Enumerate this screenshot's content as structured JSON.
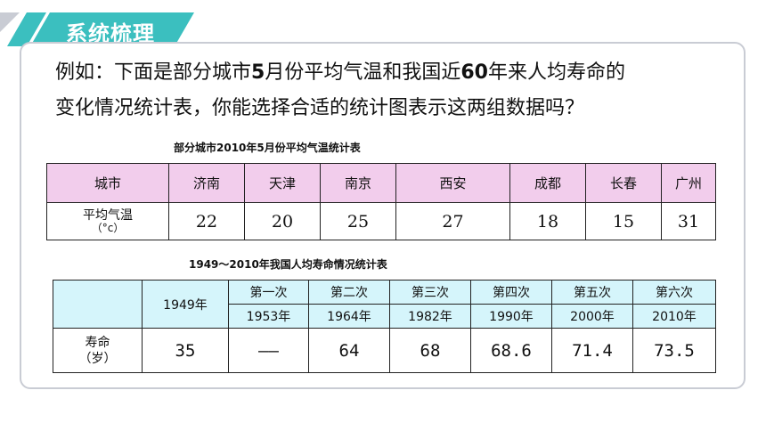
{
  "header": {
    "title": "系统梳理"
  },
  "intro": {
    "line1_a": "例如：下面是部分城市",
    "line1_num1": "5",
    "line1_b": "月份平均气温和我国近",
    "line1_num2": "60",
    "line1_c": "年来人均寿命的",
    "line2": "变化情况统计表，你能选择合适的统计图表示这两组数据吗？"
  },
  "table1": {
    "caption": "部分城市2010年5月份平均气温统计表",
    "row_header_1": "城市",
    "row_header_2_a": "平均气温",
    "row_header_2_b": "（°c）",
    "cities": [
      "济南",
      "天津",
      "南京",
      "西安",
      "成都",
      "长春",
      "广州"
    ],
    "temperatures": [
      "22",
      "20",
      "25",
      "27",
      "18",
      "15",
      "31"
    ]
  },
  "table2": {
    "caption": "1949～2010年我国人均寿命情况统计表",
    "first_year": "1949年",
    "censuses": [
      "第一次",
      "第二次",
      "第三次",
      "第四次",
      "第五次",
      "第六次"
    ],
    "census_years": [
      "1953年",
      "1964年",
      "1982年",
      "1990年",
      "2000年",
      "2010年"
    ],
    "row_label_a": "寿命",
    "row_label_b": "（岁）",
    "values": [
      "35",
      "——",
      "64",
      "68",
      "68.6",
      "71.4",
      "73.5"
    ]
  },
  "colors": {
    "tab": "#3bbfbf",
    "table1_header": "#f2cdec",
    "table2_header": "#d5f5fb",
    "card_border": "#c9ccd4"
  }
}
